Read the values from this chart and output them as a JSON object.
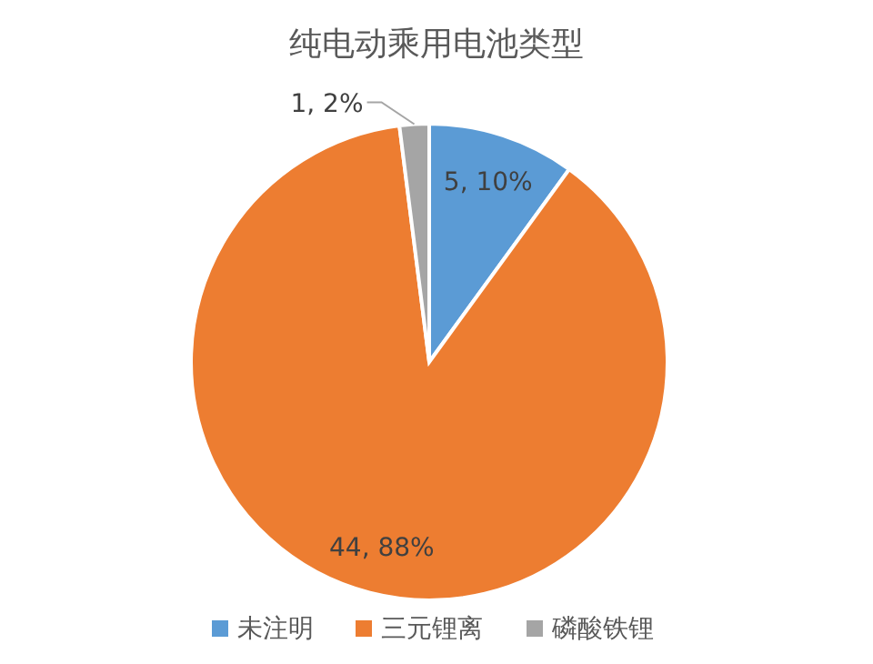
{
  "chart_data": {
    "type": "pie",
    "title": "纯电动乘用电池类型",
    "categories": [
      "未注明",
      "三元锂离",
      "磷酸铁锂"
    ],
    "values": [
      5,
      44,
      1
    ],
    "colors": [
      "#5b9bd5",
      "#ed7d31",
      "#a5a5a5"
    ],
    "value_labels": [
      "5, 10%",
      "44, 88%",
      "1, 2%"
    ],
    "legend": "bottom"
  }
}
